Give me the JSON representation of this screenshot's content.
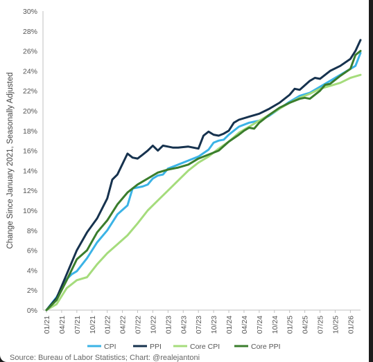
{
  "chart_data": {
    "type": "line",
    "title": "",
    "ylabel": "Change Since January 2021, Seasonally Adjusted",
    "ylim": [
      0,
      30
    ],
    "yticks": [
      0,
      2,
      4,
      6,
      8,
      10,
      12,
      14,
      16,
      18,
      20,
      22,
      24,
      26,
      28,
      30
    ],
    "ytick_format": "percent",
    "xlim": [
      "2021-01",
      "2026-03"
    ],
    "xticks": [
      "01/21",
      "04/21",
      "07/21",
      "10/21",
      "01/22",
      "04/22",
      "07/22",
      "10/22",
      "01/23",
      "04/23",
      "07/23",
      "10/23",
      "01/24",
      "04/24",
      "07/24",
      "10/24",
      "01/25",
      "04/25",
      "07/25",
      "10/25",
      "01/26"
    ],
    "grid": false,
    "legend": "bottom",
    "series": [
      {
        "name": "CPI",
        "color": "#3bb3e6",
        "x": [
          "2021-01",
          "2021-03",
          "2021-05",
          "2021-06",
          "2021-07",
          "2021-09",
          "2021-11",
          "2022-01",
          "2022-03",
          "2022-05",
          "2022-06",
          "2022-07",
          "2022-08",
          "2022-09",
          "2022-10",
          "2022-11",
          "2022-12",
          "2023-01",
          "2023-03",
          "2023-05",
          "2023-07",
          "2023-09",
          "2023-10",
          "2023-11",
          "2023-12",
          "2024-01",
          "2024-03",
          "2024-05",
          "2024-07",
          "2024-09",
          "2024-11",
          "2025-01",
          "2025-03",
          "2025-05",
          "2025-07",
          "2025-09",
          "2025-11",
          "2026-01",
          "2026-02",
          "2026-03"
        ],
        "values": [
          0,
          1.3,
          3.1,
          3.6,
          3.9,
          5.2,
          6.8,
          8.0,
          9.6,
          10.5,
          12.2,
          12.3,
          12.4,
          12.6,
          13.2,
          13.5,
          13.6,
          14.2,
          14.6,
          15.0,
          15.4,
          16.1,
          16.8,
          17.0,
          17.1,
          17.6,
          18.4,
          18.8,
          19.0,
          19.5,
          20.2,
          20.9,
          21.5,
          21.8,
          22.4,
          23.0,
          23.6,
          24.2,
          24.5,
          25.8
        ]
      },
      {
        "name": "PPI",
        "color": "#16324e",
        "x": [
          "2021-01",
          "2021-03",
          "2021-05",
          "2021-07",
          "2021-09",
          "2021-11",
          "2022-01",
          "2022-02",
          "2022-03",
          "2022-05",
          "2022-06",
          "2022-07",
          "2022-08",
          "2022-09",
          "2022-10",
          "2022-11",
          "2022-12",
          "2023-01",
          "2023-02",
          "2023-03",
          "2023-05",
          "2023-07",
          "2023-08",
          "2023-09",
          "2023-10",
          "2023-11",
          "2023-12",
          "2024-01",
          "2024-02",
          "2024-03",
          "2024-05",
          "2024-07",
          "2024-09",
          "2024-11",
          "2025-01",
          "2025-02",
          "2025-03",
          "2025-05",
          "2025-06",
          "2025-07",
          "2025-09",
          "2025-11",
          "2026-01",
          "2026-02",
          "2026-03"
        ],
        "values": [
          0,
          1.2,
          3.6,
          6.0,
          7.8,
          9.2,
          11.2,
          13.1,
          13.6,
          15.7,
          15.3,
          15.2,
          15.6,
          16.0,
          16.5,
          16.0,
          16.5,
          16.4,
          16.3,
          16.3,
          16.4,
          16.2,
          17.5,
          17.9,
          17.6,
          17.5,
          17.7,
          18.0,
          18.8,
          19.1,
          19.4,
          19.7,
          20.2,
          20.8,
          21.6,
          22.2,
          22.1,
          23.0,
          23.3,
          23.2,
          24.0,
          24.5,
          25.2,
          26.0,
          27.1
        ]
      },
      {
        "name": "Core CPI",
        "color": "#a5dc7c",
        "x": [
          "2021-01",
          "2021-03",
          "2021-05",
          "2021-07",
          "2021-09",
          "2021-11",
          "2022-01",
          "2022-03",
          "2022-05",
          "2022-07",
          "2022-09",
          "2022-11",
          "2023-01",
          "2023-03",
          "2023-05",
          "2023-07",
          "2023-09",
          "2023-11",
          "2024-01",
          "2024-03",
          "2024-05",
          "2024-07",
          "2024-09",
          "2024-11",
          "2025-01",
          "2025-03",
          "2025-05",
          "2025-07",
          "2025-09",
          "2025-11",
          "2026-01",
          "2026-03"
        ],
        "values": [
          0,
          0.6,
          2.2,
          3.0,
          3.3,
          4.6,
          5.7,
          6.6,
          7.5,
          8.7,
          10.0,
          11.0,
          12.0,
          13.0,
          14.0,
          14.8,
          15.4,
          16.2,
          16.9,
          17.8,
          18.4,
          19.0,
          19.6,
          20.2,
          20.8,
          21.3,
          21.7,
          22.2,
          22.5,
          22.8,
          23.3,
          23.6
        ]
      },
      {
        "name": "Core PPI",
        "color": "#3a7d2c",
        "x": [
          "2021-01",
          "2021-03",
          "2021-05",
          "2021-07",
          "2021-09",
          "2021-11",
          "2022-01",
          "2022-03",
          "2022-05",
          "2022-07",
          "2022-09",
          "2022-11",
          "2023-01",
          "2023-03",
          "2023-05",
          "2023-07",
          "2023-09",
          "2023-11",
          "2024-01",
          "2024-03",
          "2024-04",
          "2024-05",
          "2024-06",
          "2024-07",
          "2024-09",
          "2024-11",
          "2025-01",
          "2025-03",
          "2025-04",
          "2025-05",
          "2025-07",
          "2025-08",
          "2025-09",
          "2025-11",
          "2026-01",
          "2026-02",
          "2026-03"
        ],
        "values": [
          0,
          1.0,
          3.0,
          5.1,
          6.0,
          7.8,
          9.0,
          10.6,
          11.8,
          12.6,
          13.2,
          13.8,
          14.1,
          14.3,
          14.6,
          15.2,
          15.6,
          16.0,
          16.9,
          17.6,
          18.0,
          18.3,
          18.2,
          18.8,
          19.6,
          20.3,
          20.8,
          21.2,
          21.3,
          21.2,
          22.0,
          22.6,
          22.7,
          23.5,
          24.2,
          25.6,
          26.0
        ]
      }
    ]
  },
  "source": "Source: Bureau of Labor Statistics; Chart: @realejantoni"
}
